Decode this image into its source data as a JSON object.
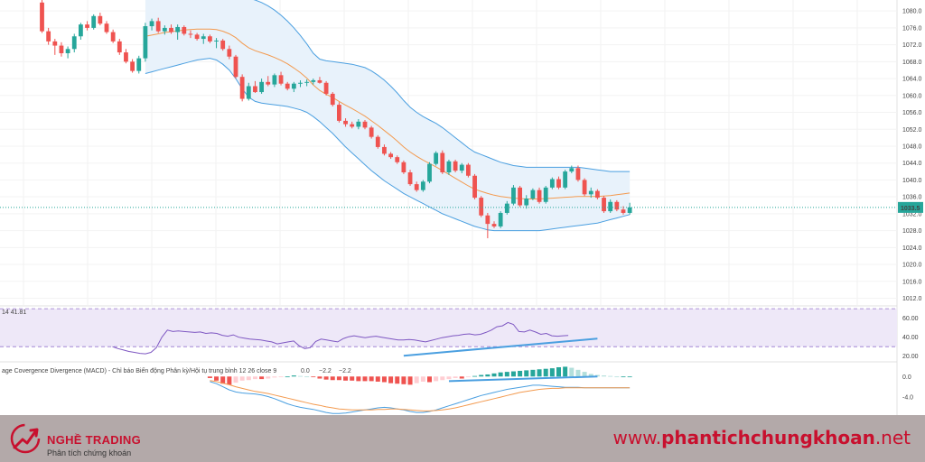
{
  "chart_data": [
    {
      "type": "candlestick",
      "name": "price",
      "y_ticks": [
        1080.0,
        1076.0,
        1072.0,
        1068.0,
        1064.0,
        1060.0,
        1056.0,
        1052.0,
        1048.0,
        1044.0,
        1040.0,
        1036.0,
        1032.0,
        1028.0,
        1024.0,
        1020.0,
        1016.0,
        1012.0
      ],
      "ylim": [
        1010.4,
        1082.6
      ],
      "last_price_label": "1033.5",
      "last_price": 1033.5,
      "colors": {
        "up": "#26a69a",
        "down": "#ef5350",
        "bb_band": "#4a9fe0",
        "bb_fill": "#e8f2fb",
        "bb_basis": "#f39a4f",
        "last_price_bg": "#26a69a"
      },
      "candles": [
        [
          1082.0,
          1083.0,
          1074.8,
          1075.2
        ],
        [
          1075.2,
          1076.0,
          1072.0,
          1072.8
        ],
        [
          1072.8,
          1073.4,
          1069.6,
          1071.8
        ],
        [
          1071.8,
          1072.6,
          1069.2,
          1070.0
        ],
        [
          1070.0,
          1071.6,
          1068.8,
          1071.0
        ],
        [
          1071.0,
          1074.6,
          1070.2,
          1074.0
        ],
        [
          1074.0,
          1077.2,
          1073.2,
          1076.8
        ],
        [
          1076.8,
          1077.6,
          1075.4,
          1076.0
        ],
        [
          1076.0,
          1079.2,
          1075.6,
          1078.8
        ],
        [
          1078.8,
          1079.6,
          1076.6,
          1077.0
        ],
        [
          1077.0,
          1077.6,
          1074.6,
          1075.0
        ],
        [
          1075.0,
          1075.6,
          1072.4,
          1072.8
        ],
        [
          1072.8,
          1073.4,
          1069.6,
          1070.2
        ],
        [
          1070.2,
          1071.0,
          1067.6,
          1068.0
        ],
        [
          1068.0,
          1068.6,
          1065.4,
          1065.8
        ],
        [
          1065.8,
          1069.4,
          1065.2,
          1068.8
        ],
        [
          1068.8,
          1077.2,
          1068.0,
          1076.4
        ],
        [
          1076.4,
          1078.2,
          1075.4,
          1077.6
        ],
        [
          1077.6,
          1078.4,
          1074.8,
          1075.2
        ],
        [
          1075.2,
          1076.6,
          1074.4,
          1076.0
        ],
        [
          1076.0,
          1076.8,
          1074.6,
          1075.0
        ],
        [
          1075.0,
          1076.8,
          1073.2,
          1076.2
        ],
        [
          1076.2,
          1076.6,
          1074.2,
          1074.6
        ],
        [
          1074.6,
          1075.4,
          1073.6,
          1074.4
        ],
        [
          1074.4,
          1074.8,
          1073.0,
          1073.4
        ],
        [
          1073.4,
          1074.6,
          1072.2,
          1074.0
        ],
        [
          1074.0,
          1074.4,
          1072.4,
          1072.8
        ],
        [
          1072.8,
          1073.6,
          1071.2,
          1073.0
        ],
        [
          1073.0,
          1073.4,
          1070.6,
          1071.0
        ],
        [
          1071.0,
          1071.8,
          1068.6,
          1069.2
        ],
        [
          1069.2,
          1069.6,
          1064.0,
          1064.4
        ],
        [
          1064.4,
          1065.0,
          1058.6,
          1059.2
        ],
        [
          1059.2,
          1063.0,
          1058.8,
          1062.2
        ],
        [
          1062.2,
          1063.4,
          1060.6,
          1060.8
        ],
        [
          1060.8,
          1064.0,
          1060.4,
          1063.2
        ],
        [
          1063.2,
          1064.6,
          1062.2,
          1062.6
        ],
        [
          1062.6,
          1065.2,
          1062.0,
          1064.8
        ],
        [
          1064.8,
          1065.6,
          1062.4,
          1062.8
        ],
        [
          1062.8,
          1063.2,
          1061.2,
          1061.6
        ],
        [
          1061.6,
          1063.2,
          1060.8,
          1062.8
        ],
        [
          1062.8,
          1063.6,
          1062.0,
          1063.0
        ],
        [
          1063.0,
          1063.8,
          1062.2,
          1063.2
        ],
        [
          1063.2,
          1064.0,
          1062.6,
          1063.6
        ],
        [
          1063.6,
          1064.4,
          1062.8,
          1063.0
        ],
        [
          1063.0,
          1063.4,
          1060.0,
          1060.4
        ],
        [
          1060.4,
          1060.8,
          1057.4,
          1057.8
        ],
        [
          1057.8,
          1058.4,
          1053.6,
          1054.0
        ],
        [
          1054.0,
          1054.6,
          1052.6,
          1053.2
        ],
        [
          1053.2,
          1053.8,
          1052.2,
          1052.6
        ],
        [
          1052.6,
          1054.4,
          1052.0,
          1053.8
        ],
        [
          1053.8,
          1054.2,
          1052.0,
          1052.4
        ],
        [
          1052.4,
          1052.8,
          1049.8,
          1050.2
        ],
        [
          1050.2,
          1050.6,
          1047.4,
          1047.8
        ],
        [
          1047.8,
          1048.4,
          1045.8,
          1046.2
        ],
        [
          1046.2,
          1046.6,
          1045.0,
          1045.4
        ],
        [
          1045.4,
          1045.8,
          1043.8,
          1044.2
        ],
        [
          1044.2,
          1044.6,
          1041.4,
          1041.8
        ],
        [
          1041.8,
          1042.4,
          1038.6,
          1039.0
        ],
        [
          1039.0,
          1039.6,
          1037.2,
          1037.6
        ],
        [
          1037.6,
          1040.0,
          1037.2,
          1039.6
        ],
        [
          1039.6,
          1044.2,
          1039.2,
          1043.8
        ],
        [
          1043.8,
          1046.8,
          1043.4,
          1046.4
        ],
        [
          1046.4,
          1047.0,
          1041.4,
          1041.8
        ],
        [
          1041.8,
          1044.8,
          1041.2,
          1044.4
        ],
        [
          1044.4,
          1044.8,
          1041.8,
          1042.2
        ],
        [
          1042.2,
          1044.0,
          1041.6,
          1043.6
        ],
        [
          1043.6,
          1044.0,
          1040.6,
          1041.0
        ],
        [
          1041.0,
          1041.4,
          1035.4,
          1035.8
        ],
        [
          1035.8,
          1036.2,
          1031.2,
          1031.6
        ],
        [
          1031.6,
          1032.2,
          1026.2,
          1029.6
        ],
        [
          1029.6,
          1030.2,
          1028.6,
          1029.0
        ],
        [
          1029.0,
          1032.6,
          1028.6,
          1032.2
        ],
        [
          1032.2,
          1035.0,
          1031.8,
          1034.4
        ],
        [
          1034.4,
          1038.8,
          1034.0,
          1038.2
        ],
        [
          1038.2,
          1038.6,
          1033.6,
          1034.0
        ],
        [
          1034.0,
          1036.4,
          1033.2,
          1035.6
        ],
        [
          1035.6,
          1038.0,
          1035.2,
          1037.6
        ],
        [
          1037.6,
          1038.2,
          1034.4,
          1034.8
        ],
        [
          1034.8,
          1038.6,
          1034.4,
          1038.2
        ],
        [
          1038.2,
          1040.6,
          1037.8,
          1040.2
        ],
        [
          1040.2,
          1040.8,
          1037.8,
          1038.2
        ],
        [
          1038.2,
          1042.4,
          1037.8,
          1042.0
        ],
        [
          1042.0,
          1043.4,
          1041.6,
          1042.8
        ],
        [
          1042.8,
          1043.4,
          1039.6,
          1040.0
        ],
        [
          1040.0,
          1040.4,
          1036.2,
          1036.6
        ],
        [
          1036.6,
          1038.2,
          1035.8,
          1037.4
        ],
        [
          1037.4,
          1037.8,
          1035.4,
          1035.8
        ],
        [
          1035.8,
          1036.2,
          1032.2,
          1032.6
        ],
        [
          1032.6,
          1035.4,
          1032.2,
          1034.8
        ],
        [
          1034.8,
          1035.2,
          1032.6,
          1033.0
        ],
        [
          1033.0,
          1033.8,
          1031.8,
          1032.2
        ],
        [
          1032.2,
          1034.6,
          1031.8,
          1033.5
        ]
      ],
      "bb_upper": [
        null,
        null,
        null,
        null,
        null,
        null,
        null,
        null,
        null,
        null,
        null,
        null,
        null,
        null,
        null,
        null,
        1082.8,
        1083.0,
        1083.2,
        1083.3,
        1083.4,
        1083.4,
        1083.3,
        1083.2,
        1083.0,
        1082.8,
        1082.7,
        1082.8,
        1083.0,
        1083.2,
        1083.3,
        1083.2,
        1083.0,
        1082.6,
        1082.0,
        1081.2,
        1080.2,
        1079.0,
        1077.6,
        1076.0,
        1074.2,
        1072.2,
        1070.0,
        1068.6,
        1068.2,
        1068.0,
        1067.8,
        1067.6,
        1067.4,
        1067.0,
        1066.6,
        1065.8,
        1064.8,
        1063.6,
        1062.2,
        1060.6,
        1058.8,
        1057.2,
        1056.0,
        1055.0,
        1054.2,
        1053.4,
        1052.4,
        1051.2,
        1050.0,
        1048.8,
        1047.6,
        1046.6,
        1046.0,
        1045.4,
        1044.8,
        1044.2,
        1043.8,
        1043.4,
        1043.2,
        1043.0,
        1043.0,
        1043.0,
        1043.0,
        1043.0,
        1043.0,
        1043.0,
        1043.0,
        1043.0,
        1042.8,
        1042.6,
        1042.4,
        1042.2,
        1042.0,
        1042.0,
        1042.0,
        1042.0
      ],
      "bb_lower": [
        null,
        null,
        null,
        null,
        null,
        null,
        null,
        null,
        null,
        null,
        null,
        null,
        null,
        null,
        null,
        null,
        1065.2,
        1065.6,
        1066.0,
        1066.4,
        1066.8,
        1067.2,
        1067.6,
        1068.0,
        1068.4,
        1068.6,
        1068.8,
        1068.4,
        1067.4,
        1066.0,
        1064.0,
        1061.6,
        1059.6,
        1058.6,
        1058.2,
        1058.0,
        1057.8,
        1057.6,
        1057.4,
        1057.0,
        1056.6,
        1056.0,
        1055.0,
        1053.8,
        1052.4,
        1051.0,
        1049.4,
        1047.8,
        1046.4,
        1045.0,
        1043.6,
        1042.2,
        1041.0,
        1039.8,
        1038.8,
        1037.8,
        1036.8,
        1036.0,
        1035.2,
        1034.4,
        1033.6,
        1032.8,
        1032.0,
        1031.4,
        1030.8,
        1030.2,
        1029.6,
        1029.0,
        1028.6,
        1028.2,
        1028.0,
        1028.0,
        1028.0,
        1028.0,
        1028.0,
        1028.0,
        1028.0,
        1028.0,
        1028.2,
        1028.4,
        1028.6,
        1028.8,
        1029.0,
        1029.2,
        1029.4,
        1029.6,
        1029.8,
        1030.2,
        1030.6,
        1031.0,
        1031.4,
        1031.8
      ],
      "bb_basis": [
        null,
        null,
        null,
        null,
        null,
        null,
        null,
        null,
        null,
        null,
        null,
        null,
        null,
        null,
        null,
        null,
        1074.0,
        1074.3,
        1074.6,
        1074.9,
        1075.1,
        1075.3,
        1075.5,
        1075.6,
        1075.7,
        1075.7,
        1075.7,
        1075.6,
        1075.2,
        1074.6,
        1073.7,
        1072.4,
        1071.3,
        1070.6,
        1070.1,
        1069.6,
        1069.0,
        1068.3,
        1067.5,
        1066.5,
        1065.4,
        1064.1,
        1062.5,
        1061.2,
        1060.3,
        1059.5,
        1058.6,
        1057.7,
        1056.9,
        1056.0,
        1055.1,
        1054.0,
        1052.9,
        1051.7,
        1050.5,
        1049.2,
        1047.8,
        1046.6,
        1045.6,
        1044.7,
        1043.9,
        1043.1,
        1042.2,
        1041.3,
        1040.4,
        1039.5,
        1038.6,
        1037.8,
        1037.3,
        1036.8,
        1036.4,
        1036.1,
        1035.9,
        1035.7,
        1035.6,
        1035.5,
        1035.5,
        1035.5,
        1035.6,
        1035.7,
        1035.8,
        1035.9,
        1036.0,
        1036.1,
        1036.1,
        1036.1,
        1036.1,
        1036.2,
        1036.3,
        1036.5,
        1036.7,
        1036.9
      ]
    },
    {
      "type": "line",
      "name": "rsi",
      "header_text": "14  41.81",
      "y_ticks": [
        60.0,
        40.0,
        20.0
      ],
      "ylim": [
        15,
        72
      ],
      "upper_band": 70,
      "lower_band": 30,
      "colors": {
        "line": "#7e57c2",
        "band_fill": "#eee8f8",
        "band_line": "#9575cd",
        "divergence": "#4a9fe0"
      },
      "values": [
        null,
        null,
        null,
        null,
        null,
        null,
        null,
        null,
        null,
        null,
        null,
        null,
        null,
        null,
        30.0,
        28.0,
        26.5,
        25.0,
        24.0,
        23.0,
        22.5,
        24.0,
        29.0,
        40.0,
        47.5,
        46.0,
        46.5,
        46.0,
        45.5,
        45.0,
        45.5,
        44.0,
        44.5,
        44.0,
        42.0,
        41.0,
        42.5,
        40.0,
        39.0,
        38.0,
        37.5,
        37.0,
        36.0,
        35.0,
        33.0,
        34.0,
        35.0,
        36.0,
        31.0,
        28.0,
        29.0,
        35.5,
        38.0,
        37.0,
        36.0,
        35.0,
        38.5,
        40.5,
        41.5,
        40.5,
        39.5,
        40.5,
        41.0,
        40.0,
        39.0,
        38.0,
        37.0,
        37.0,
        37.5,
        37.0,
        36.0,
        35.0,
        36.5,
        38.0,
        39.5,
        40.5,
        41.5,
        42.0,
        43.0,
        43.5,
        42.5,
        43.0,
        45.0,
        47.5,
        51.0,
        52.0,
        55.5,
        53.5,
        46.0,
        45.5,
        47.5,
        45.5,
        43.0,
        44.0,
        41.5,
        41.0,
        41.5,
        41.8
      ],
      "divergence_line": [
        [
          56,
          20.5
        ],
        [
          86,
          38.5
        ]
      ]
    },
    {
      "type": "histogram+line",
      "name": "macd",
      "header_text": "age Covergence Divergence (MACD) - Chỉ báo Biến động Phân kỳ/Hội tụ trung bình 12 26 close 9",
      "header_values": [
        "0.0",
        "−2.2",
        "−2.2"
      ],
      "header_value_colors": [
        "#26a69a",
        "#2196f3",
        "#ff9800"
      ],
      "y_ticks": [
        0.0,
        -4.0
      ],
      "ylim": [
        -7.5,
        2.5
      ],
      "colors": {
        "hist_up": "#26a69a",
        "hist_up_light": "#b2dfdb",
        "hist_down": "#ef5350",
        "hist_down_light": "#ffcdd2",
        "macd": "#4a9fe0",
        "signal": "#f39a4f",
        "divergence": "#4a9fe0"
      },
      "macd_x_start": 26,
      "hist": [
        -0.3,
        -0.8,
        -1.4,
        -1.6,
        -1.2,
        -0.8,
        -0.7,
        -0.5,
        -0.5,
        -0.4,
        -0.2,
        -0.1,
        0.0,
        0.2,
        0.1,
        0.0,
        -0.1,
        -0.4,
        -0.6,
        -0.7,
        -0.7,
        -0.8,
        -0.8,
        -0.9,
        -0.9,
        -0.9,
        -1.0,
        -1.1,
        -1.3,
        -1.4,
        -1.5,
        -1.6,
        -1.3,
        -1.0,
        -1.1,
        -0.9,
        -0.7,
        -0.5,
        -0.3,
        -0.4,
        -0.1,
        0.1,
        0.3,
        0.4,
        0.6,
        0.8,
        0.9,
        1.0,
        1.1,
        1.2,
        1.3,
        1.4,
        1.5,
        1.6,
        1.8,
        1.9,
        1.7,
        1.3,
        0.9,
        0.5,
        0.3,
        0.2,
        0.1,
        0.0,
        0.0,
        0.0
      ],
      "macd": [
        -1.0,
        -1.4,
        -2.0,
        -2.6,
        -3.0,
        -3.2,
        -3.3,
        -3.4,
        -3.6,
        -3.9,
        -4.3,
        -4.8,
        -5.3,
        -5.7,
        -6.0,
        -6.2,
        -6.4,
        -6.7,
        -7.0,
        -7.2,
        -7.2,
        -7.1,
        -6.9,
        -6.7,
        -6.5,
        -6.3,
        -6.1,
        -6.0,
        -6.1,
        -6.3,
        -6.5,
        -6.8,
        -7.0,
        -7.0,
        -6.8,
        -6.5,
        -6.1,
        -5.7,
        -5.3,
        -4.9,
        -4.5,
        -4.1,
        -3.7,
        -3.4,
        -3.1,
        -2.8,
        -2.5,
        -2.3,
        -2.1,
        -1.9,
        -1.7,
        -1.7,
        -1.8,
        -1.9,
        -2.0,
        -2.1,
        -2.1,
        -2.1,
        -2.2,
        -2.2,
        -2.2,
        -2.2,
        -2.2,
        -2.2,
        -2.2,
        -2.2
      ],
      "signal": [
        -0.8,
        -1.0,
        -1.3,
        -1.6,
        -2.0,
        -2.3,
        -2.6,
        -2.9,
        -3.1,
        -3.3,
        -3.6,
        -3.9,
        -4.2,
        -4.5,
        -4.8,
        -5.1,
        -5.4,
        -5.6,
        -5.9,
        -6.1,
        -6.3,
        -6.4,
        -6.5,
        -6.5,
        -6.5,
        -6.5,
        -6.4,
        -6.4,
        -6.3,
        -6.3,
        -6.4,
        -6.5,
        -6.6,
        -6.7,
        -6.7,
        -6.6,
        -6.5,
        -6.3,
        -6.1,
        -5.8,
        -5.5,
        -5.2,
        -4.9,
        -4.6,
        -4.3,
        -4.0,
        -3.7,
        -3.4,
        -3.1,
        -2.9,
        -2.7,
        -2.5,
        -2.4,
        -2.3,
        -2.3,
        -2.2,
        -2.2,
        -2.2,
        -2.2,
        -2.2,
        -2.2,
        -2.2,
        -2.2,
        -2.2,
        -2.2,
        -2.2
      ],
      "divergence_line": [
        [
          63,
          -0.9
        ],
        [
          86,
          0.0
        ]
      ]
    }
  ],
  "footer": {
    "brand_name": "NGHỀ TRADING",
    "brand_sub": "Phân tích chứng khoán",
    "site_prefix": "www.",
    "site_bold": "phantichchungkhoan",
    "site_suffix": ".net",
    "brand_color": "#c8102e",
    "footer_bg": "#b3a9a9",
    "logo_icon": "arrow-chart-icon"
  }
}
